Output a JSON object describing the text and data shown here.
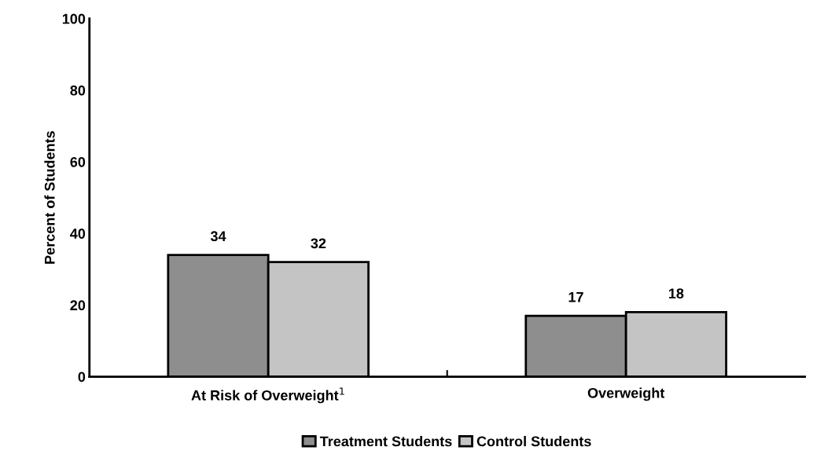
{
  "chart_data": {
    "type": "bar",
    "ylabel": "Percent of Students",
    "categories": [
      "At Risk of Overweight$^{1}$",
      "Overweight"
    ],
    "series": [
      {
        "name": "Treatment Students",
        "color": "#8e8e8e",
        "values": [
          34,
          17
        ]
      },
      {
        "name": "Control Students",
        "color": "#c4c4c4",
        "values": [
          32,
          18
        ]
      }
    ],
    "ylim": [
      0,
      100
    ],
    "yticks": [
      0,
      20,
      40,
      60,
      80,
      100
    ],
    "data_labels": true,
    "grid": false,
    "legend": "bottom"
  }
}
